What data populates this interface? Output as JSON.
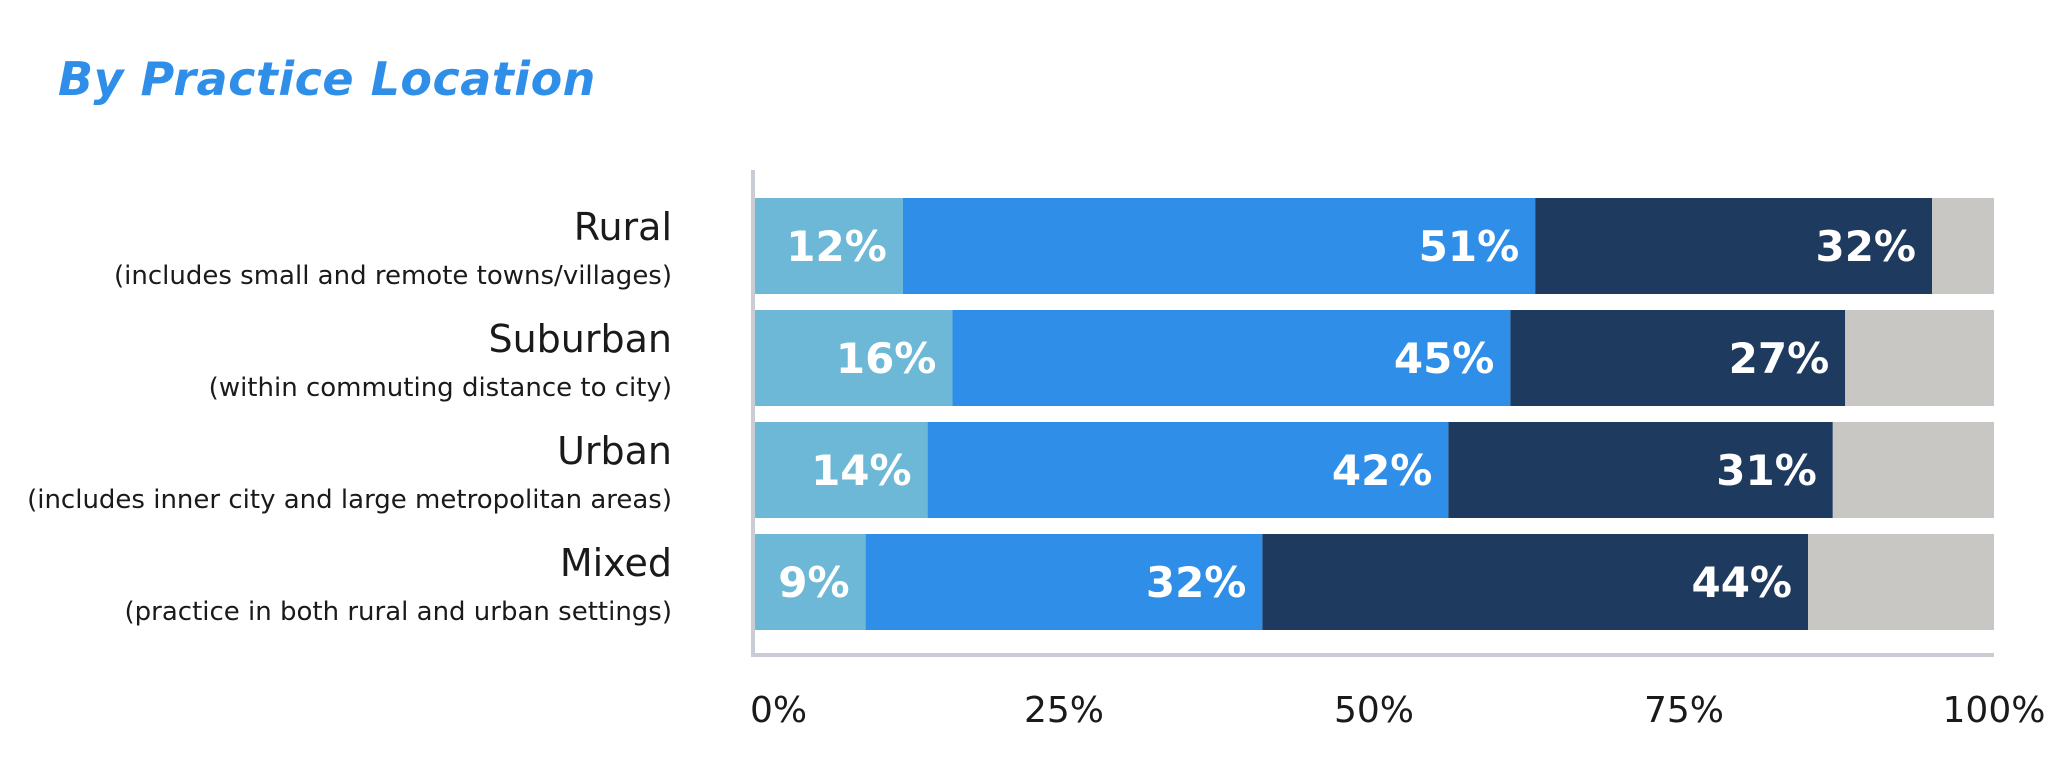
{
  "chart_data": {
    "type": "bar",
    "orientation": "horizontal",
    "stacked": true,
    "title": "By Practice Location",
    "categories": [
      "Rural",
      "Suburban",
      "Urban",
      "Mixed"
    ],
    "category_subtitles": [
      "(includes small and remote towns/villages)",
      "(within commuting distance to city)",
      "(includes inner city and large metropolitan areas)",
      "(practice in both rural and urban settings)"
    ],
    "series": [
      {
        "values": [
          12,
          16,
          14,
          9
        ],
        "color": "#6cb8d6",
        "labels": [
          "12%",
          "16%",
          "14%",
          "9%"
        ]
      },
      {
        "values": [
          51,
          45,
          42,
          32
        ],
        "color": "#2f8fe8",
        "labels": [
          "51%",
          "45%",
          "42%",
          "32%"
        ]
      },
      {
        "values": [
          32,
          27,
          31,
          44
        ],
        "color": "#1f3a5f",
        "labels": [
          "32%",
          "27%",
          "31%",
          "44%"
        ]
      },
      {
        "values": [
          5,
          12,
          13,
          15
        ],
        "color": "#c9c7c3",
        "labels": [
          "",
          "",
          "",
          ""
        ]
      }
    ],
    "xlim": [
      0,
      100
    ],
    "xticks": [
      "0%",
      "25%",
      "50%",
      "75%",
      "100%"
    ],
    "grid": false,
    "legend": "none"
  }
}
